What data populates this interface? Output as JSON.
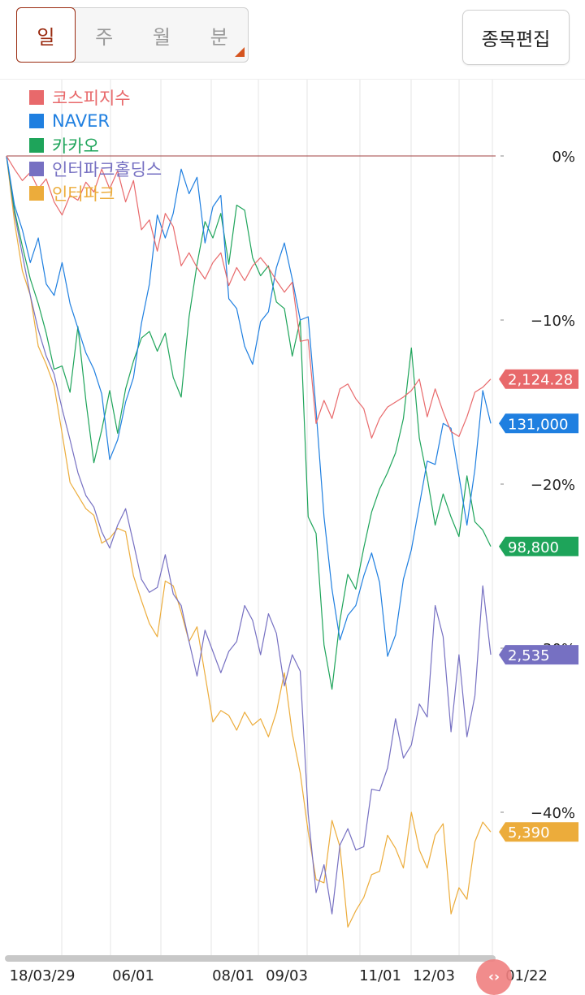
{
  "period_tabs": [
    {
      "label": "일",
      "active": true
    },
    {
      "label": "주",
      "active": false
    },
    {
      "label": "월",
      "active": false
    },
    {
      "label": "분",
      "active": false
    }
  ],
  "edit_button_label": "종목편집",
  "scroll_handle_icon": "‹›",
  "chart_data": {
    "type": "line",
    "ylabel_unit": "%",
    "y_ticks": [
      {
        "value": 0,
        "label": "0%"
      },
      {
        "value": -10,
        "label": "−10%"
      },
      {
        "value": -20,
        "label": "−20%"
      },
      {
        "value": -30,
        "label": "−30%"
      },
      {
        "value": -40,
        "label": "−40%"
      }
    ],
    "ylim": [
      4.2,
      -47.8
    ],
    "x_tick_labels": [
      "18/03/29",
      "06/01",
      "08/01",
      "09/03",
      "11/01",
      "12/03",
      "01/22"
    ],
    "grid": true,
    "legend_position": "top-left",
    "series": [
      {
        "name": "코스피지수",
        "color": "#e8696b",
        "last_label": "2,124.28",
        "values": [
          0,
          -0.8,
          -1.5,
          -1,
          -2,
          -1.4,
          -2.8,
          -3.6,
          -2.4,
          -2.7,
          -1.6,
          -2.2,
          -0.8,
          -2,
          -0.9,
          -2.8,
          -1.5,
          -4.5,
          -3.9,
          -5.8,
          -3.5,
          -4.3,
          -6.7,
          -5.9,
          -6.8,
          -7.5,
          -6.5,
          -5.9,
          -7.9,
          -6.8,
          -7.6,
          -6.7,
          -6.2,
          -6.8,
          -7.6,
          -8.3,
          -7.7,
          -11.3,
          -11.2,
          -16.3,
          -14.9,
          -16,
          -14.2,
          -13.9,
          -14.8,
          -15.4,
          -17.2,
          -16,
          -15.3,
          -15,
          -14.7,
          -14.3,
          -13.6,
          -15.9,
          -14.2,
          -15.6,
          -16.8,
          -17.1,
          -15.9,
          -14.4,
          -14.1,
          -13.6
        ]
      },
      {
        "name": "NAVER",
        "color": "#1f7fe0",
        "last_label": "131,000",
        "values": [
          0,
          -3,
          -4.5,
          -6.5,
          -5,
          -7.8,
          -8.5,
          -6.5,
          -9,
          -10.5,
          -12,
          -13,
          -14.5,
          -18.5,
          -17.3,
          -15,
          -13.5,
          -10.2,
          -7.8,
          -3.6,
          -5,
          -3.5,
          -0.8,
          -2.3,
          -1.3,
          -5.3,
          -3.1,
          -2.4,
          -8.7,
          -9.3,
          -11.6,
          -12.7,
          -10.1,
          -9.5,
          -6.8,
          -5.3,
          -7.5,
          -10,
          -9.8,
          -15.5,
          -22,
          -26.4,
          -29.5,
          -28,
          -27.4,
          -25.6,
          -24.2,
          -26,
          -30.5,
          -29.2,
          -25.8,
          -24,
          -21.3,
          -18.6,
          -18.8,
          -16.3,
          -16.6,
          -19.5,
          -22.5,
          -19.1,
          -14.3,
          -16.3
        ]
      },
      {
        "name": "카카오",
        "color": "#1ea45a",
        "last_label": "98,800",
        "values": [
          0,
          -3.3,
          -5.5,
          -7.5,
          -9,
          -10.8,
          -13,
          -12.8,
          -14.4,
          -10.4,
          -14.9,
          -18.7,
          -16.7,
          -14.3,
          -16.9,
          -14.2,
          -12.5,
          -11.1,
          -10.7,
          -11.9,
          -10.8,
          -13.5,
          -14.7,
          -9.8,
          -6.6,
          -4,
          -5,
          -3.5,
          -6.6,
          -3,
          -3.3,
          -6.2,
          -7.3,
          -6.7,
          -8.9,
          -9.3,
          -12.2,
          -10,
          -22,
          -23,
          -29.8,
          -32.5,
          -28.3,
          -25.5,
          -26.4,
          -23.9,
          -21.7,
          -20.3,
          -19.3,
          -18.1,
          -16,
          -11.7,
          -17.2,
          -19.6,
          -22.5,
          -20.6,
          -22,
          -23.2,
          -19.5,
          -22.3,
          -22.8,
          -23.8
        ]
      },
      {
        "name": "인터파크홀딩스",
        "color": "#7670c2",
        "last_label": "2,535",
        "values": [
          0,
          -3.5,
          -6,
          -8.5,
          -10.6,
          -12.2,
          -13.3,
          -15.4,
          -17.3,
          -19.3,
          -20.7,
          -21.4,
          -22.9,
          -23.9,
          -22.5,
          -21.5,
          -23.6,
          -25.8,
          -26.6,
          -26.3,
          -24.3,
          -26.7,
          -27.4,
          -29.6,
          -31.7,
          -28.9,
          -30.2,
          -31.5,
          -30.2,
          -29.6,
          -27.4,
          -28.3,
          -30.4,
          -27.9,
          -29.1,
          -32.3,
          -30.4,
          -31.4,
          -40.1,
          -44.9,
          -43.2,
          -46.2,
          -42,
          -41,
          -42.3,
          -42.1,
          -38.6,
          -38.7,
          -37.3,
          -34.3,
          -36.7,
          -35.9,
          -33.4,
          -34.2,
          -27.4,
          -29.3,
          -35.1,
          -30.4,
          -35.4,
          -32.9,
          -26.2,
          -30.4
        ]
      },
      {
        "name": "인터파크",
        "color": "#ecac3b",
        "last_label": "5,390",
        "values": [
          0,
          -4,
          -7,
          -8.5,
          -11.6,
          -12.7,
          -14,
          -16.9,
          -19.9,
          -20.7,
          -21.5,
          -21.9,
          -23.6,
          -23.3,
          -22.7,
          -22.9,
          -25.6,
          -27.1,
          -28.5,
          -29.3,
          -25.9,
          -26.2,
          -27.8,
          -29.6,
          -28.7,
          -31.6,
          -34.5,
          -33.8,
          -34.1,
          -35,
          -33.9,
          -34.7,
          -34.3,
          -35.4,
          -33.9,
          -31.5,
          -35.2,
          -37.6,
          -41.2,
          -44.1,
          -44.3,
          -40.5,
          -42.1,
          -47,
          -46,
          -45.2,
          -43.8,
          -43.6,
          -41.4,
          -42.2,
          -43.4,
          -40,
          -42.3,
          -43.4,
          -41.4,
          -40.7,
          -46.2,
          -44.6,
          -45.3,
          -41.8,
          -40.6,
          -41.2
        ]
      }
    ]
  }
}
